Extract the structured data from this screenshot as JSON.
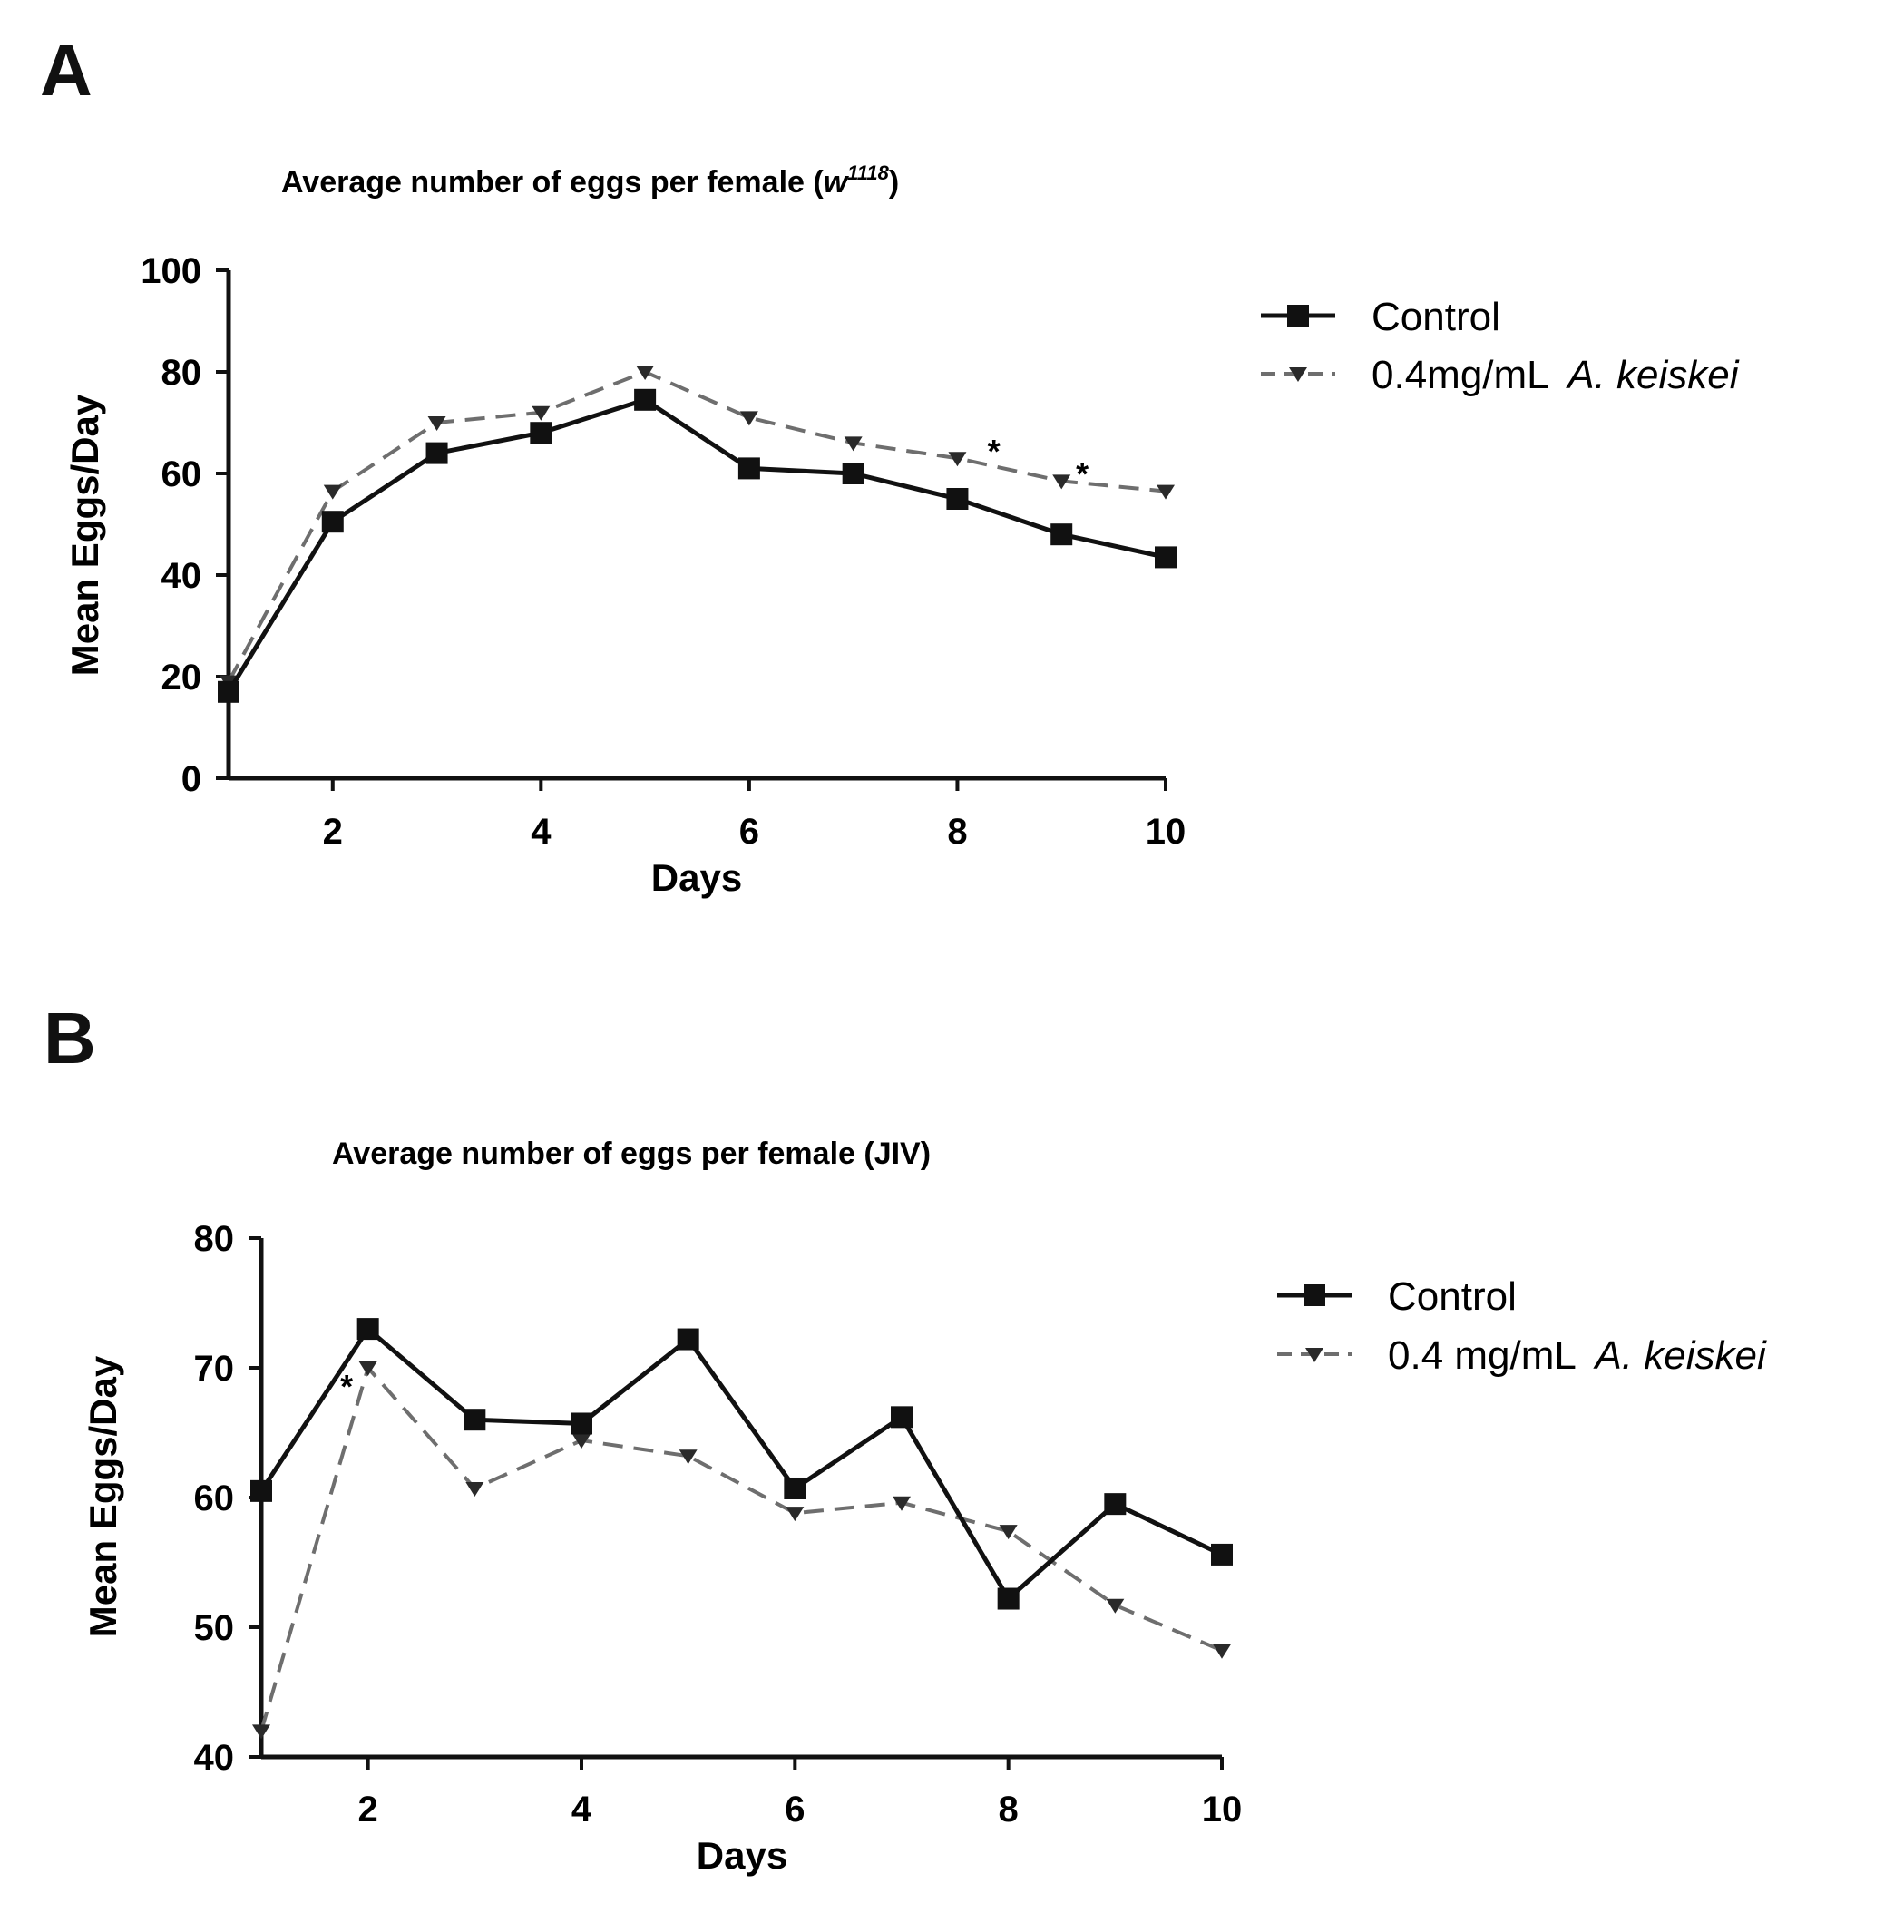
{
  "panels": {
    "a": {
      "letter": "A"
    },
    "b": {
      "letter": "B"
    }
  },
  "colors": {
    "control": "#111111",
    "treatment": "#6e6e6e",
    "axis": "#111111"
  },
  "chart_data": [
    {
      "type": "line",
      "panel": "A",
      "title": "Average number of eggs per female (",
      "title_genotype": "w",
      "title_superscript": "1118",
      "title_end": ")",
      "xlabel": "Days",
      "ylabel": "Mean  Eggs/Day",
      "x": [
        1,
        2,
        3,
        4,
        5,
        6,
        7,
        8,
        9,
        10
      ],
      "xticks": [
        "2",
        "4",
        "6",
        "8",
        "10"
      ],
      "xtick_values": [
        2,
        4,
        6,
        8,
        10
      ],
      "yticks": [
        "0",
        "20",
        "40",
        "60",
        "80",
        "100"
      ],
      "ytick_values": [
        0,
        20,
        40,
        60,
        80,
        100
      ],
      "xlim": [
        1,
        10
      ],
      "ylim": [
        0,
        100
      ],
      "series": [
        {
          "name": "Control",
          "legend_label": "Control",
          "style": "solid",
          "marker": "square",
          "values": [
            17,
            50.5,
            64,
            68,
            74.5,
            61,
            60,
            55,
            48,
            43.5
          ]
        },
        {
          "name": "Treatment",
          "legend_label": "0.4mg/mL ",
          "legend_italic": "A. keiskei",
          "style": "dashed",
          "marker": "triangle",
          "values": [
            19,
            56.5,
            70,
            72,
            80,
            71,
            66,
            63,
            58.5,
            56.5
          ]
        }
      ],
      "annotations": [
        {
          "text": "*",
          "x": 8.35,
          "y": 65
        },
        {
          "text": "*",
          "x": 9.2,
          "y": 60.5
        }
      ],
      "legend_position": "right"
    },
    {
      "type": "line",
      "panel": "B",
      "title": "Average number of eggs per female (JIV)",
      "xlabel": "Days",
      "ylabel": "Mean Eggs/Day",
      "x": [
        1,
        2,
        3,
        4,
        5,
        6,
        7,
        8,
        9,
        10
      ],
      "xticks": [
        "2",
        "4",
        "6",
        "8",
        "10"
      ],
      "xtick_values": [
        2,
        4,
        6,
        8,
        10
      ],
      "yticks": [
        "40",
        "50",
        "60",
        "70",
        "80"
      ],
      "ytick_values": [
        40,
        50,
        60,
        70,
        80
      ],
      "xlim": [
        1,
        10
      ],
      "ylim": [
        40,
        80
      ],
      "series": [
        {
          "name": "Control",
          "legend_label": "Control",
          "style": "solid",
          "marker": "square",
          "values": [
            60.5,
            73,
            66,
            65.7,
            72.2,
            60.7,
            66.2,
            52.2,
            59.5,
            55.6
          ]
        },
        {
          "name": "Treatment",
          "legend_label": "0.4 mg/mL ",
          "legend_italic": "A. keiskei",
          "style": "dashed",
          "marker": "triangle",
          "values": [
            42,
            70,
            60.7,
            64.4,
            63.2,
            58.8,
            59.6,
            57.4,
            51.7,
            48.2
          ]
        }
      ],
      "annotations": [
        {
          "text": "*",
          "x": 1.8,
          "y": 68.8
        }
      ],
      "legend_position": "right"
    }
  ]
}
